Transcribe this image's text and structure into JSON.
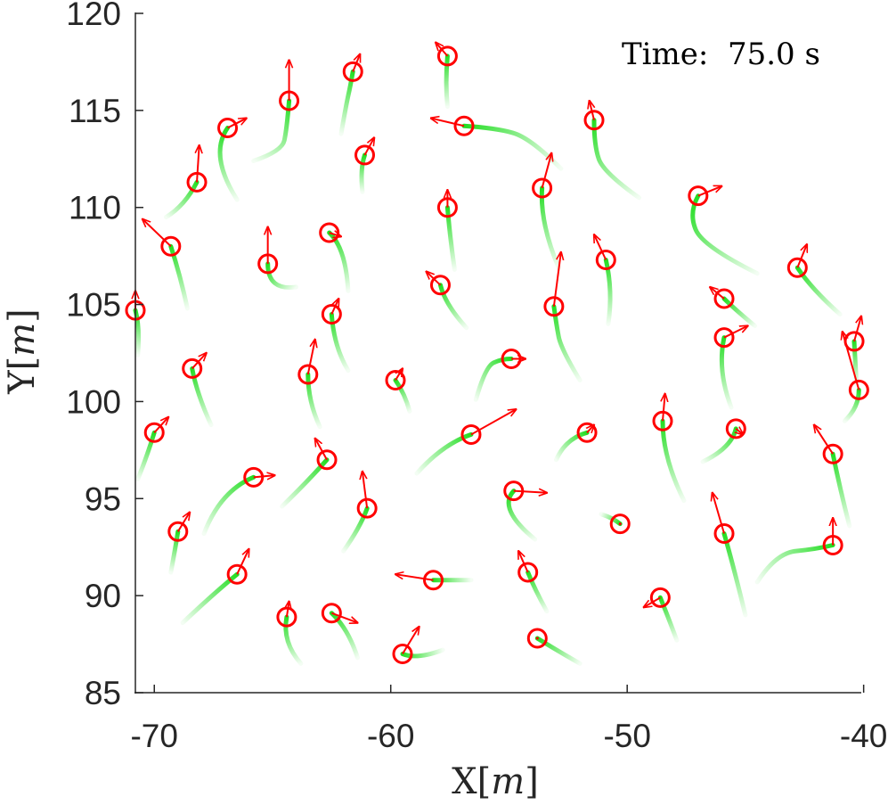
{
  "chart_data": {
    "type": "scatter",
    "title": "",
    "time_label": "Time:  75.0 s",
    "xlabel": {
      "prefix": "X[",
      "var": "m",
      "suffix": "]"
    },
    "ylabel": {
      "prefix": "Y[",
      "var": "m",
      "suffix": "]"
    },
    "xlim": [
      -70.8,
      -40.1
    ],
    "ylim": [
      85,
      120
    ],
    "xticks": [
      -70,
      -60,
      -50,
      -40
    ],
    "yticks": [
      85,
      90,
      95,
      100,
      105,
      110,
      115,
      120
    ],
    "xtick_labels": [
      "-70",
      "-60",
      "-50",
      "-40"
    ],
    "ytick_labels": [
      "85",
      "90",
      "95",
      "100",
      "105",
      "110",
      "115",
      "120"
    ],
    "colors": {
      "agent": "#ff0000",
      "trail": "#22dd22",
      "axis": "#262626"
    },
    "agents": [
      {
        "x": -64.3,
        "y": 115.5,
        "hx": 0.0,
        "hy": 2.1,
        "trail": [
          [
            -65.8,
            112.4
          ],
          [
            -64.6,
            112.9
          ],
          [
            -64.4,
            114.0
          ]
        ]
      },
      {
        "x": -61.6,
        "y": 117.0,
        "hx": 0.3,
        "hy": 0.9,
        "trail": [
          [
            -62.1,
            113.8
          ],
          [
            -61.9,
            115.2
          ],
          [
            -61.7,
            116.3
          ]
        ]
      },
      {
        "x": -57.6,
        "y": 117.8,
        "hx": -0.5,
        "hy": 0.7,
        "trail": [
          [
            -57.6,
            115.2
          ],
          [
            -57.7,
            116.4
          ]
        ]
      },
      {
        "x": -56.9,
        "y": 114.2,
        "hx": -1.4,
        "hy": 0.4,
        "trail": [
          [
            -52.8,
            112.0
          ],
          [
            -54.1,
            113.6
          ],
          [
            -55.6,
            114.1
          ]
        ]
      },
      {
        "x": -51.4,
        "y": 114.5,
        "hx": -0.2,
        "hy": 1.0,
        "trail": [
          [
            -49.5,
            110.5
          ],
          [
            -51.0,
            111.8
          ],
          [
            -51.4,
            113.2
          ]
        ]
      },
      {
        "x": -66.9,
        "y": 114.1,
        "hx": 0.8,
        "hy": 0.5,
        "trail": [
          [
            -66.5,
            110.4
          ],
          [
            -67.7,
            112.7
          ]
        ]
      },
      {
        "x": -68.2,
        "y": 111.3,
        "hx": 0.1,
        "hy": 1.9,
        "trail": [
          [
            -69.5,
            109.5
          ],
          [
            -68.7,
            110.1
          ]
        ]
      },
      {
        "x": -61.1,
        "y": 112.7,
        "hx": 0.4,
        "hy": 0.9,
        "trail": [
          [
            -61.2,
            110.8
          ],
          [
            -61.3,
            112.0
          ]
        ]
      },
      {
        "x": -53.6,
        "y": 111.0,
        "hx": 0.4,
        "hy": 1.8,
        "trail": [
          [
            -52.9,
            106.9
          ],
          [
            -53.7,
            109.2
          ]
        ]
      },
      {
        "x": -57.6,
        "y": 110.0,
        "hx": 0.0,
        "hy": 0.9,
        "trail": [
          [
            -57.3,
            106.8
          ],
          [
            -57.5,
            108.5
          ]
        ]
      },
      {
        "x": -47.0,
        "y": 110.6,
        "hx": 1.0,
        "hy": 0.5,
        "trail": [
          [
            -44.5,
            106.6
          ],
          [
            -46.8,
            108.0
          ],
          [
            -47.4,
            109.7
          ]
        ]
      },
      {
        "x": -69.3,
        "y": 108.0,
        "hx": -1.2,
        "hy": 1.4,
        "trail": [
          [
            -68.6,
            104.8
          ],
          [
            -68.9,
            106.5
          ]
        ]
      },
      {
        "x": -65.2,
        "y": 107.1,
        "hx": 0.0,
        "hy": 1.9,
        "trail": [
          [
            -64.0,
            105.9
          ],
          [
            -65.2,
            105.7
          ]
        ]
      },
      {
        "x": -62.6,
        "y": 108.7,
        "hx": 0.5,
        "hy": -0.2,
        "trail": [
          [
            -61.8,
            105.7
          ],
          [
            -61.9,
            107.9
          ]
        ]
      },
      {
        "x": -57.9,
        "y": 106.0,
        "hx": -0.6,
        "hy": 0.7,
        "trail": [
          [
            -56.8,
            103.8
          ],
          [
            -57.7,
            105.0
          ]
        ]
      },
      {
        "x": -53.1,
        "y": 104.9,
        "hx": 0.3,
        "hy": 2.8,
        "trail": [
          [
            -52.0,
            101.1
          ],
          [
            -52.8,
            102.7
          ],
          [
            -53.0,
            104.0
          ]
        ]
      },
      {
        "x": -50.9,
        "y": 107.3,
        "hx": -0.5,
        "hy": 1.3,
        "trail": [
          [
            -50.8,
            104.0
          ],
          [
            -50.6,
            105.7
          ]
        ]
      },
      {
        "x": -42.8,
        "y": 106.9,
        "hx": 0.4,
        "hy": 1.2,
        "trail": [
          [
            -41.0,
            104.5
          ],
          [
            -42.2,
            105.8
          ]
        ]
      },
      {
        "x": -70.8,
        "y": 104.7,
        "hx": 0.0,
        "hy": 1.0,
        "trail": [
          [
            -70.7,
            102.4
          ],
          [
            -70.6,
            103.8
          ]
        ]
      },
      {
        "x": -62.5,
        "y": 104.5,
        "hx": 0.3,
        "hy": 0.8,
        "trail": [
          [
            -61.8,
            101.6
          ],
          [
            -62.4,
            102.8
          ]
        ]
      },
      {
        "x": -45.9,
        "y": 105.3,
        "hx": -0.6,
        "hy": 0.6,
        "trail": [
          [
            -44.6,
            103.9
          ],
          [
            -45.4,
            104.7
          ]
        ]
      },
      {
        "x": -45.9,
        "y": 103.3,
        "hx": 1.0,
        "hy": 0.6,
        "trail": [
          [
            -45.6,
            99.7
          ],
          [
            -46.2,
            101.6
          ]
        ]
      },
      {
        "x": -40.4,
        "y": 103.1,
        "hx": 0.3,
        "hy": 1.3,
        "trail": [
          [
            -40.3,
            100.9
          ]
        ]
      },
      {
        "x": -40.2,
        "y": 100.6,
        "hx": -0.7,
        "hy": 3.0,
        "trail": [
          [
            -40.8,
            99.0
          ],
          [
            -40.2,
            99.7
          ]
        ]
      },
      {
        "x": -68.4,
        "y": 101.7,
        "hx": 0.6,
        "hy": 0.8,
        "trail": [
          [
            -67.6,
            98.8
          ],
          [
            -68.2,
            100.4
          ]
        ]
      },
      {
        "x": -63.5,
        "y": 101.4,
        "hx": 0.3,
        "hy": 1.8,
        "trail": [
          [
            -63.0,
            98.7
          ],
          [
            -63.5,
            100.0
          ]
        ]
      },
      {
        "x": -59.8,
        "y": 101.1,
        "hx": 0.3,
        "hy": 0.6,
        "trail": [
          [
            -59.2,
            99.5
          ],
          [
            -59.4,
            100.4
          ]
        ]
      },
      {
        "x": -54.9,
        "y": 102.2,
        "hx": 0.6,
        "hy": 0.0,
        "trail": [
          [
            -56.4,
            100.1
          ],
          [
            -56.0,
            101.8
          ],
          [
            -55.3,
            102.2
          ]
        ]
      },
      {
        "x": -70.0,
        "y": 98.4,
        "hx": 0.6,
        "hy": 0.8,
        "trail": [
          [
            -70.7,
            96.0
          ],
          [
            -70.3,
            97.2
          ]
        ]
      },
      {
        "x": -56.6,
        "y": 98.3,
        "hx": 1.9,
        "hy": 1.3,
        "trail": [
          [
            -58.9,
            96.3
          ],
          [
            -57.8,
            97.8
          ]
        ]
      },
      {
        "x": -51.7,
        "y": 98.4,
        "hx": 0.3,
        "hy": 0.4,
        "trail": [
          [
            -53.0,
            97.0
          ],
          [
            -52.6,
            98.1
          ]
        ]
      },
      {
        "x": -48.5,
        "y": 99.0,
        "hx": 0.1,
        "hy": 1.4,
        "trail": [
          [
            -47.6,
            94.9
          ],
          [
            -48.5,
            97.1
          ]
        ]
      },
      {
        "x": -45.4,
        "y": 98.6,
        "hx": 0.3,
        "hy": -0.3,
        "trail": [
          [
            -46.8,
            96.9
          ],
          [
            -45.6,
            97.6
          ]
        ]
      },
      {
        "x": -41.3,
        "y": 97.3,
        "hx": -0.8,
        "hy": 1.5,
        "trail": [
          [
            -40.6,
            93.6
          ],
          [
            -41.0,
            95.5
          ]
        ]
      },
      {
        "x": -65.8,
        "y": 96.1,
        "hx": 0.9,
        "hy": 0.1,
        "trail": [
          [
            -67.9,
            93.2
          ],
          [
            -67.2,
            95.4
          ]
        ]
      },
      {
        "x": -62.7,
        "y": 97.0,
        "hx": -0.5,
        "hy": 1.1,
        "trail": [
          [
            -64.6,
            94.6
          ],
          [
            -63.5,
            95.9
          ]
        ]
      },
      {
        "x": -61.0,
        "y": 94.5,
        "hx": -0.2,
        "hy": 1.9,
        "trail": [
          [
            -62.0,
            92.3
          ],
          [
            -61.3,
            93.5
          ]
        ]
      },
      {
        "x": -54.8,
        "y": 95.4,
        "hx": 1.4,
        "hy": -0.1,
        "trail": [
          [
            -53.9,
            92.9
          ],
          [
            -55.5,
            94.5
          ]
        ]
      },
      {
        "x": -50.3,
        "y": 93.7,
        "hx": 0.0,
        "hy": 0.0,
        "trail": [
          [
            -51.1,
            94.2
          ],
          [
            -50.6,
            94.0
          ]
        ]
      },
      {
        "x": -45.9,
        "y": 93.2,
        "hx": -0.5,
        "hy": 2.1,
        "trail": [
          [
            -45.0,
            89.0
          ],
          [
            -45.5,
            91.5
          ]
        ]
      },
      {
        "x": -41.3,
        "y": 92.6,
        "hx": 0.0,
        "hy": 1.4,
        "trail": [
          [
            -44.5,
            90.7
          ],
          [
            -43.7,
            92.2
          ],
          [
            -42.0,
            92.4
          ]
        ]
      },
      {
        "x": -69.0,
        "y": 93.3,
        "hx": 0.5,
        "hy": 1.0,
        "trail": [
          [
            -69.3,
            91.2
          ],
          [
            -69.1,
            92.5
          ]
        ]
      },
      {
        "x": -66.5,
        "y": 91.1,
        "hx": 0.5,
        "hy": 1.3,
        "trail": [
          [
            -68.8,
            88.6
          ],
          [
            -67.5,
            90.1
          ]
        ]
      },
      {
        "x": -58.2,
        "y": 90.8,
        "hx": -1.6,
        "hy": 0.3,
        "trail": [
          [
            -56.6,
            90.8
          ],
          [
            -57.4,
            90.8
          ]
        ]
      },
      {
        "x": -54.2,
        "y": 91.2,
        "hx": -0.4,
        "hy": 1.1,
        "trail": [
          [
            -53.4,
            89.2
          ],
          [
            -53.9,
            90.3
          ]
        ]
      },
      {
        "x": -48.6,
        "y": 89.9,
        "hx": -0.7,
        "hy": -0.5,
        "trail": [
          [
            -47.9,
            87.7
          ],
          [
            -48.3,
            89.0
          ]
        ]
      },
      {
        "x": -64.4,
        "y": 88.9,
        "hx": 0.1,
        "hy": 0.8,
        "trail": [
          [
            -63.8,
            86.5
          ],
          [
            -64.6,
            87.6
          ]
        ]
      },
      {
        "x": -62.5,
        "y": 89.1,
        "hx": 1.1,
        "hy": -0.5,
        "trail": [
          [
            -61.4,
            86.8
          ],
          [
            -61.8,
            88.3
          ]
        ]
      },
      {
        "x": -59.5,
        "y": 87.0,
        "hx": 0.7,
        "hy": 1.4,
        "trail": [
          [
            -57.8,
            87.2
          ],
          [
            -58.9,
            86.7
          ]
        ]
      },
      {
        "x": -53.8,
        "y": 87.8,
        "hx": 0.0,
        "hy": 0.0,
        "trail": [
          [
            -52.0,
            86.5
          ],
          [
            -53.0,
            87.2
          ]
        ]
      }
    ]
  }
}
